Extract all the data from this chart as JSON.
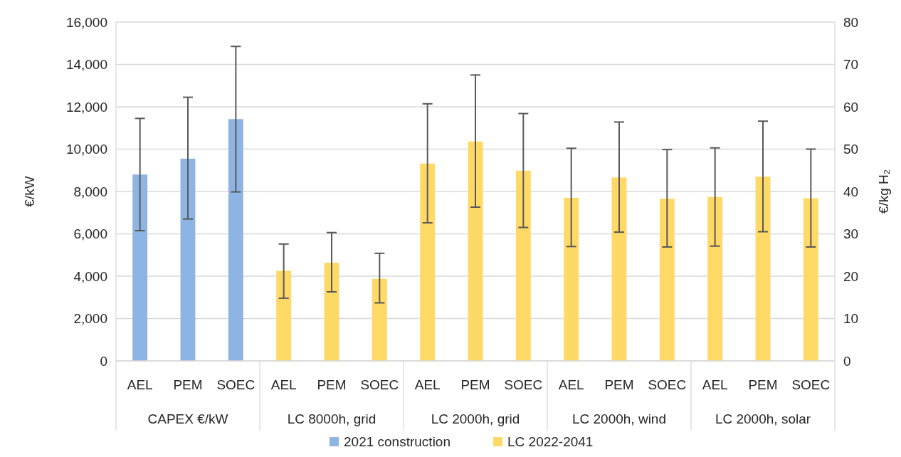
{
  "chart_data": {
    "type": "bar",
    "categories": [
      "AEL",
      "PEM",
      "SOEC",
      "AEL",
      "PEM",
      "SOEC",
      "AEL",
      "PEM",
      "SOEC",
      "AEL",
      "PEM",
      "SOEC",
      "AEL",
      "PEM",
      "SOEC"
    ],
    "series": [
      {
        "name": "2021 construction",
        "color": "#8eb4e3",
        "values": [
          8800,
          9550,
          11420,
          null,
          null,
          null,
          null,
          null,
          null,
          null,
          null,
          null,
          null,
          null,
          null
        ],
        "errors": [
          [
            6150,
            11450
          ],
          [
            6700,
            12450
          ],
          [
            7980,
            14850
          ],
          null,
          null,
          null,
          null,
          null,
          null,
          null,
          null,
          null,
          null,
          null,
          null
        ]
      },
      {
        "name": "LC 2022-2041",
        "color": "#ffd966",
        "axis": "y2",
        "values": [
          null,
          null,
          null,
          21.3,
          23.2,
          19.4,
          46.6,
          51.8,
          44.9,
          38.5,
          43.3,
          38.3,
          38.7,
          43.5,
          38.4
        ],
        "errors": [
          null,
          null,
          null,
          [
            14.8,
            27.6
          ],
          [
            16.3,
            30.3
          ],
          [
            13.7,
            25.4
          ],
          [
            32.6,
            60.7
          ],
          [
            36.3,
            67.5
          ],
          [
            31.5,
            58.4
          ],
          [
            27.0,
            50.2
          ],
          [
            30.4,
            56.4
          ],
          [
            26.9,
            49.9
          ],
          [
            27.1,
            50.3
          ],
          [
            30.5,
            56.6
          ],
          [
            26.9,
            50.0
          ]
        ]
      }
    ],
    "annotations": [
      "CAPEX €/kW",
      "LC 8000h, grid",
      "LC 2000h, grid",
      "LC 2000h, wind",
      "LC 2000h, solar"
    ],
    "ylabel": "€/kW",
    "y2label": "€/kg H₂",
    "ylim": [
      0,
      16000
    ],
    "yticks": [
      0,
      {
        "value": 2000,
        "label": "2,000"
      },
      {
        "value": 4000,
        "label": "4,000"
      },
      {
        "value": 6000,
        "label": "6,000"
      },
      {
        "value": 8000,
        "label": "8,000"
      },
      {
        "value": 10000,
        "label": "10,000"
      },
      {
        "value": 12000,
        "label": "12,000"
      },
      {
        "value": 14000,
        "label": "14,000"
      },
      {
        "value": 16000,
        "label": "16,000"
      }
    ],
    "y2lim": [
      0,
      80
    ],
    "y2ticks": [
      0,
      10,
      20,
      30,
      40,
      50,
      60,
      70,
      80
    ],
    "grid": "y",
    "legend": "bottom"
  }
}
